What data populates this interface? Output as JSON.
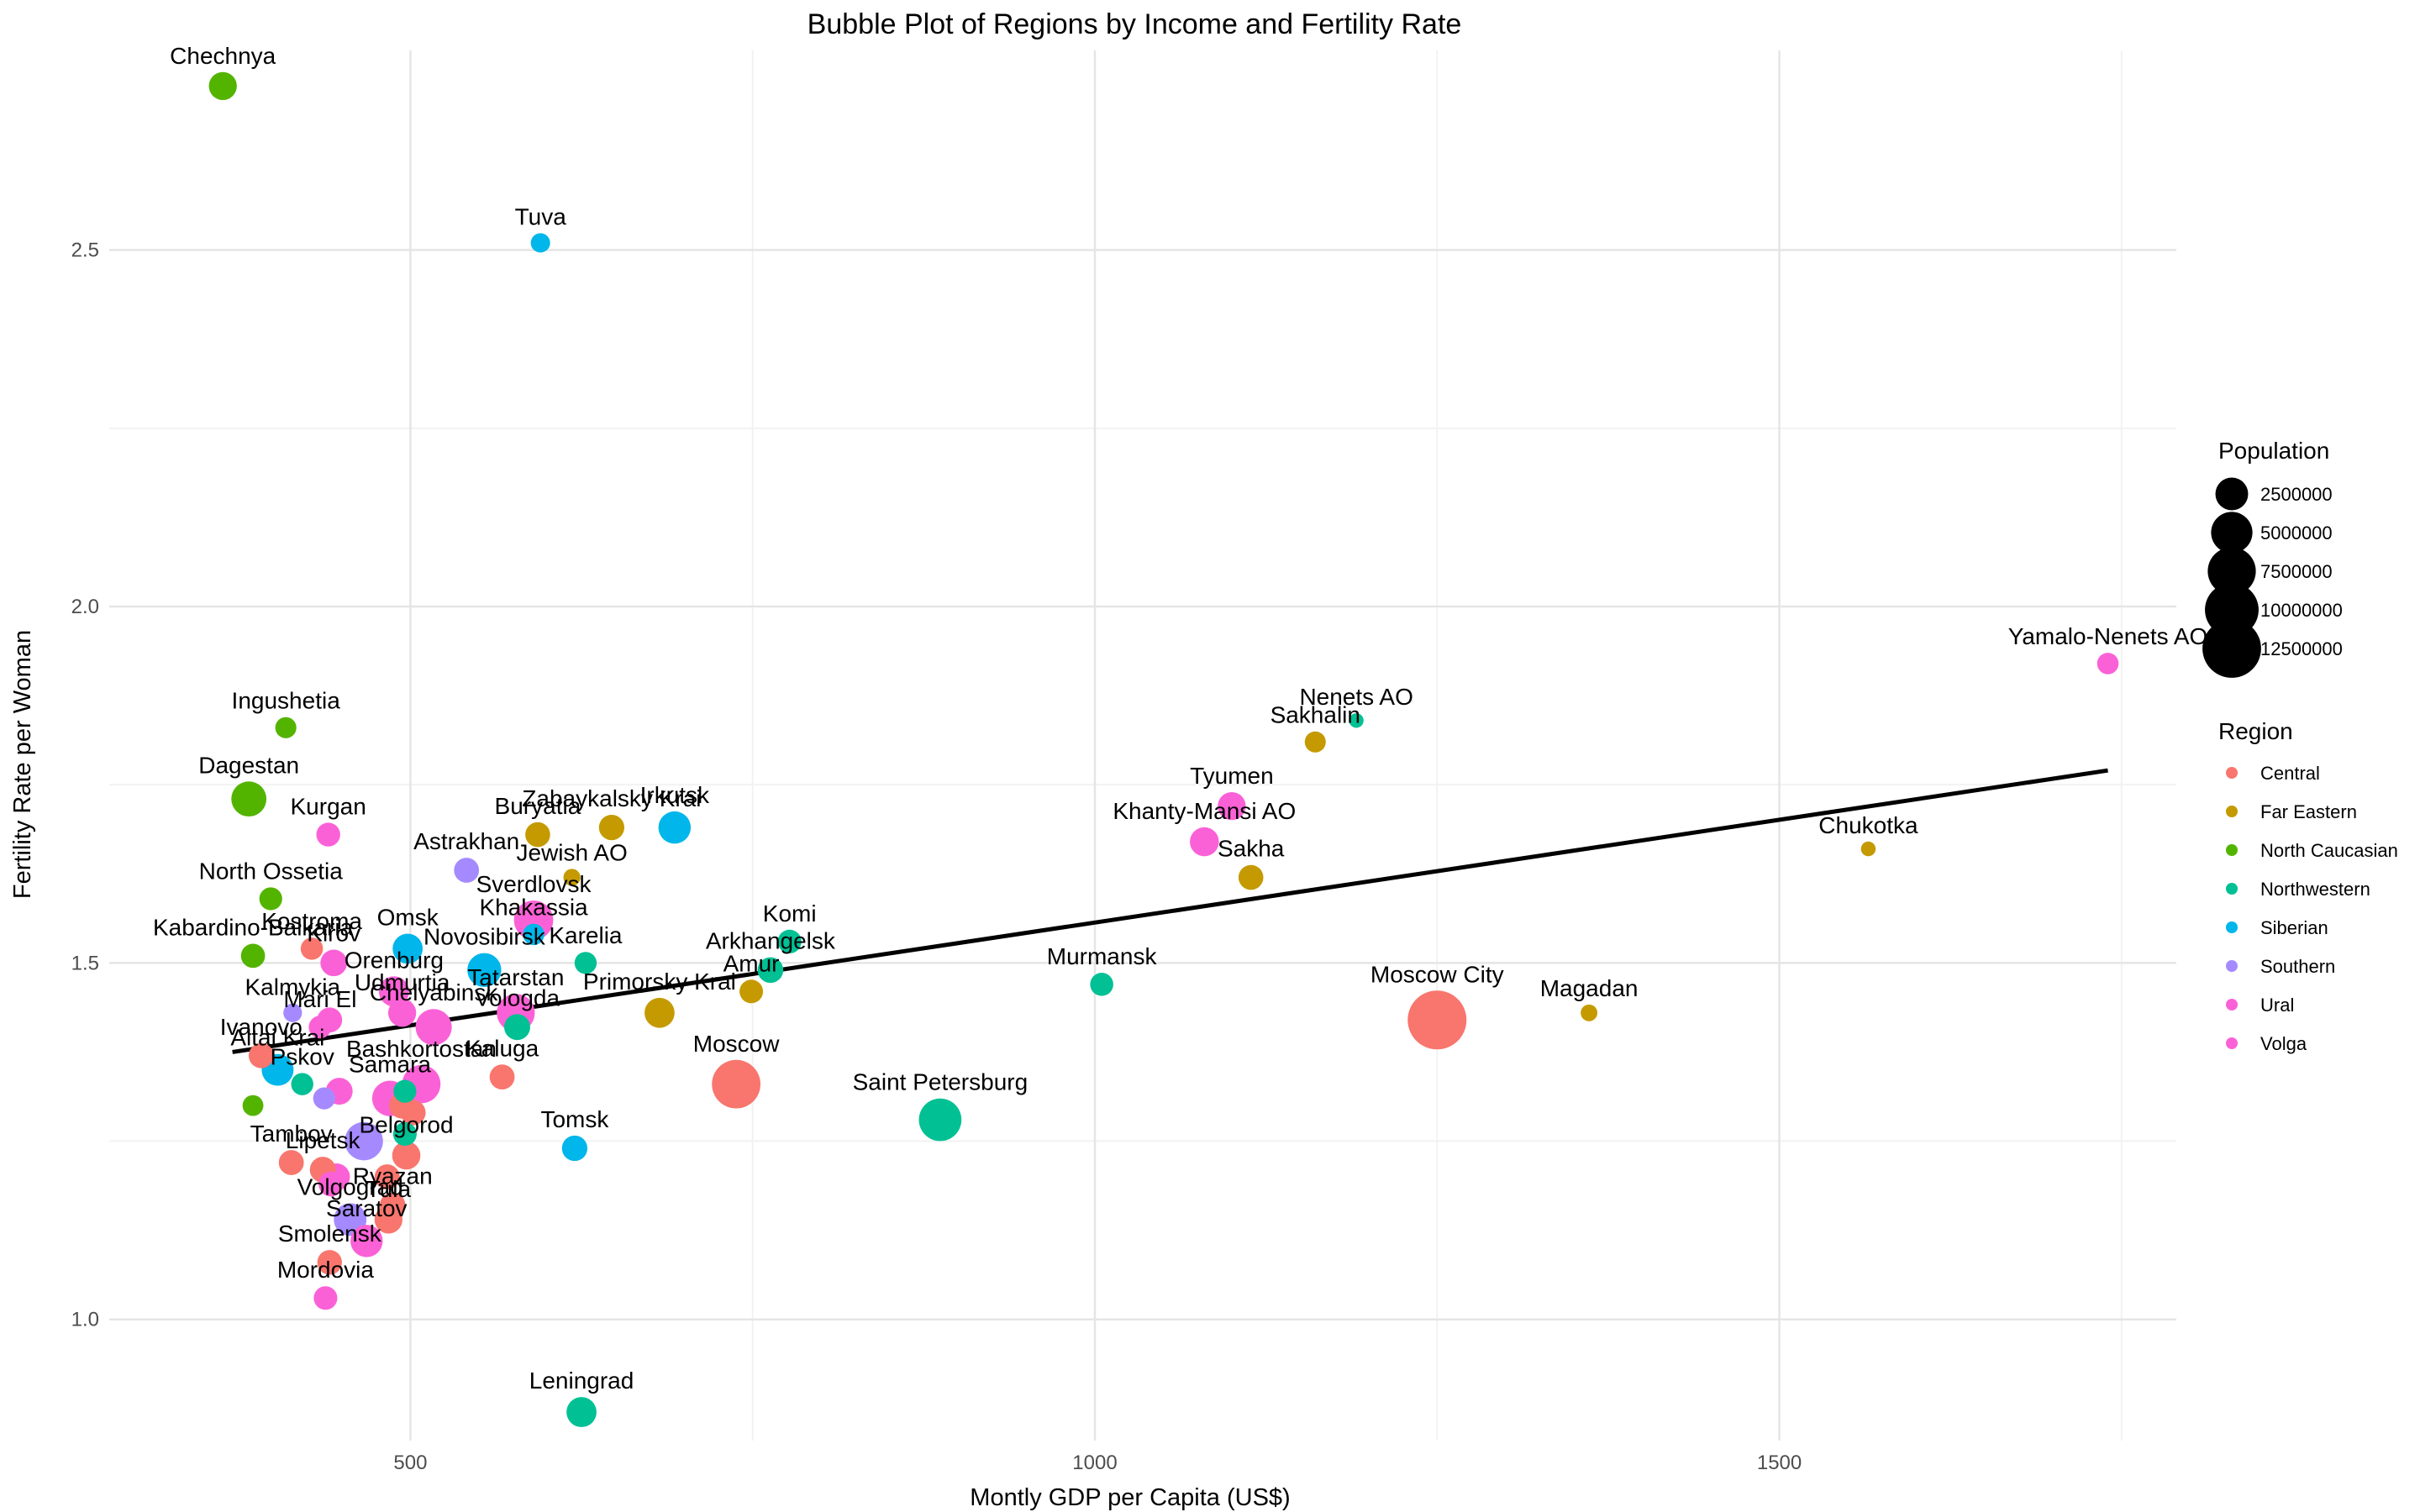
{
  "chart_data": {
    "type": "scatter",
    "title": "Bubble Plot of Regions by Income and Fertility Rate",
    "xlabel": "Montly GDP per Capita (US$)",
    "ylabel": "Fertility Rate per Woman",
    "xlim": [
      280,
      1790
    ],
    "ylim": [
      0.83,
      2.78
    ],
    "x_ticks": [
      500,
      1000,
      1500
    ],
    "y_ticks": [
      1.0,
      1.5,
      2.0,
      2.5
    ],
    "x_minor": [
      750,
      1250,
      1750
    ],
    "y_minor": [
      1.25,
      1.75,
      2.25
    ],
    "grid": true,
    "trend_line": {
      "x": [
        370,
        1740
      ],
      "y": [
        1.375,
        1.77
      ]
    },
    "legend_size": {
      "title": "Population",
      "values": [
        2500000,
        5000000,
        7500000,
        10000000,
        12500000
      ],
      "labels": [
        "2500000",
        "5000000",
        "7500000",
        "10000000",
        "12500000"
      ]
    },
    "legend_color": {
      "title": "Region",
      "regions": [
        "Central",
        "Far Eastern",
        "North Caucasian",
        "Northwestern",
        "Siberian",
        "Southern",
        "Ural",
        "Volga"
      ],
      "colors": [
        "#F8766D",
        "#C49A00",
        "#53B400",
        "#00C094",
        "#00B6EB",
        "#A58AFF",
        "#FB61D7",
        "#FB61D7"
      ]
    },
    "points": [
      {
        "name": "Chechnya",
        "region": "North Caucasian",
        "x": 363,
        "y": 2.73,
        "pop": 1500000,
        "label": true
      },
      {
        "name": "Tuva",
        "region": "Siberian",
        "x": 595,
        "y": 2.51,
        "pop": 330000,
        "label": true
      },
      {
        "name": "Ingushetia",
        "region": "North Caucasian",
        "x": 409,
        "y": 1.83,
        "pop": 500000,
        "label": true
      },
      {
        "name": "Dagestan",
        "region": "North Caucasian",
        "x": 382,
        "y": 1.73,
        "pop": 3100000,
        "label": true
      },
      {
        "name": "Kurgan",
        "region": "Ural",
        "x": 440,
        "y": 1.68,
        "pop": 830000,
        "label": true
      },
      {
        "name": "North Ossetia",
        "region": "North Caucasian",
        "x": 398,
        "y": 1.59,
        "pop": 700000,
        "label": true
      },
      {
        "name": "Kostroma",
        "region": "Central",
        "x": 428,
        "y": 1.52,
        "pop": 630000,
        "label": true
      },
      {
        "name": "Kabardino-Balkaria",
        "region": "North Caucasian",
        "x": 385,
        "y": 1.51,
        "pop": 870000,
        "label": true
      },
      {
        "name": "Kirov",
        "region": "Volga",
        "x": 444,
        "y": 1.5,
        "pop": 1250000,
        "label": true
      },
      {
        "name": "Omsk",
        "region": "Siberian",
        "x": 498,
        "y": 1.52,
        "pop": 1900000,
        "label": true
      },
      {
        "name": "Orenburg",
        "region": "Volga",
        "x": 488,
        "y": 1.46,
        "pop": 1950000,
        "label": true
      },
      {
        "name": "Udmurtia",
        "region": "Volga",
        "x": 494,
        "y": 1.43,
        "pop": 1500000,
        "label": true
      },
      {
        "name": "Kalmykia",
        "region": "Southern",
        "x": 414,
        "y": 1.43,
        "pop": 270000,
        "label": true
      },
      {
        "name": "Mari El",
        "region": "Volga",
        "x": 434,
        "y": 1.41,
        "pop": 680000,
        "label": true
      },
      {
        "name": "Ivanovo",
        "region": "Central",
        "x": 391,
        "y": 1.37,
        "pop": 1000000,
        "label": true
      },
      {
        "name": "Altai Krai",
        "region": "Siberian",
        "x": 403,
        "y": 1.35,
        "pop": 2300000,
        "label": true
      },
      {
        "name": "Pskov",
        "region": "Northwestern",
        "x": 421,
        "y": 1.33,
        "pop": 620000,
        "label": true
      },
      {
        "name": "Chelyabinsk",
        "region": "Ural",
        "x": 517,
        "y": 1.41,
        "pop": 3400000,
        "label": true
      },
      {
        "name": "Bashkortostan",
        "region": "Volga",
        "x": 508,
        "y": 1.33,
        "pop": 4000000,
        "label": true
      },
      {
        "name": "Samara",
        "region": "Volga",
        "x": 485,
        "y": 1.31,
        "pop": 3200000,
        "label": true
      },
      {
        "name": "Tambov",
        "region": "Central",
        "x": 413,
        "y": 1.22,
        "pop": 1000000,
        "label": true
      },
      {
        "name": "Lipetsk",
        "region": "Central",
        "x": 436,
        "y": 1.21,
        "pop": 1140000,
        "label": true
      },
      {
        "name": "Belgorod",
        "region": "Central",
        "x": 497,
        "y": 1.23,
        "pop": 1550000,
        "label": true
      },
      {
        "name": "Volgograd",
        "region": "Southern",
        "x": 456,
        "y": 1.14,
        "pop": 2500000,
        "label": true
      },
      {
        "name": "Ryazan",
        "region": "Central",
        "x": 487,
        "y": 1.16,
        "pop": 1110000,
        "label": true
      },
      {
        "name": "Tula",
        "region": "Central",
        "x": 484,
        "y": 1.14,
        "pop": 1500000,
        "label": true
      },
      {
        "name": "Saratov",
        "region": "Volga",
        "x": 468,
        "y": 1.11,
        "pop": 2400000,
        "label": true
      },
      {
        "name": "Smolensk",
        "region": "Central",
        "x": 441,
        "y": 1.08,
        "pop": 950000,
        "label": true
      },
      {
        "name": "Mordovia",
        "region": "Volga",
        "x": 438,
        "y": 1.03,
        "pop": 800000,
        "label": true
      },
      {
        "name": "Astrakhan",
        "region": "Southern",
        "x": 541,
        "y": 1.63,
        "pop": 1000000,
        "label": true
      },
      {
        "name": "Sverdlovsk",
        "region": "Ural",
        "x": 590,
        "y": 1.56,
        "pop": 4300000,
        "label": true
      },
      {
        "name": "Khakassia",
        "region": "Siberian",
        "x": 590,
        "y": 1.54,
        "pop": 530000,
        "label": true
      },
      {
        "name": "Novosibirsk",
        "region": "Siberian",
        "x": 554,
        "y": 1.49,
        "pop": 2800000,
        "label": true
      },
      {
        "name": "Karelia",
        "region": "Northwestern",
        "x": 628,
        "y": 1.5,
        "pop": 610000,
        "label": true
      },
      {
        "name": "Tatarstan",
        "region": "Volga",
        "x": 577,
        "y": 1.43,
        "pop": 3900000,
        "label": true
      },
      {
        "name": "Vologda",
        "region": "Northwestern",
        "x": 578,
        "y": 1.41,
        "pop": 1150000,
        "label": true
      },
      {
        "name": "Kaluga",
        "region": "Central",
        "x": 567,
        "y": 1.34,
        "pop": 1000000,
        "label": true
      },
      {
        "name": "Buryatia",
        "region": "Far Eastern",
        "x": 593,
        "y": 1.68,
        "pop": 980000,
        "label": true
      },
      {
        "name": "Zabaykalsky Krai",
        "region": "Far Eastern",
        "x": 647,
        "y": 1.69,
        "pop": 1060000,
        "label": true
      },
      {
        "name": "Irkutsk",
        "region": "Siberian",
        "x": 693,
        "y": 1.69,
        "pop": 2400000,
        "label": true
      },
      {
        "name": "Jewish AO",
        "region": "Far Eastern",
        "x": 618,
        "y": 1.62,
        "pop": 160000,
        "label": true
      },
      {
        "name": "Tomsk",
        "region": "Siberian",
        "x": 620,
        "y": 1.24,
        "pop": 1070000,
        "label": true
      },
      {
        "name": "Leningrad",
        "region": "Northwestern",
        "x": 625,
        "y": 0.87,
        "pop": 1900000,
        "label": true
      },
      {
        "name": "Amur",
        "region": "Far Eastern",
        "x": 749,
        "y": 1.46,
        "pop": 790000,
        "label": true
      },
      {
        "name": "Arkhangelsk",
        "region": "Northwestern",
        "x": 763,
        "y": 1.49,
        "pop": 1100000,
        "label": true
      },
      {
        "name": "Komi",
        "region": "Northwestern",
        "x": 777,
        "y": 1.53,
        "pop": 820000,
        "label": true
      },
      {
        "name": "Primorsky Krai",
        "region": "Far Eastern",
        "x": 682,
        "y": 1.43,
        "pop": 1900000,
        "label": true
      },
      {
        "name": "Moscow",
        "region": "Central",
        "x": 738,
        "y": 1.33,
        "pop": 7700000,
        "label": true
      },
      {
        "name": "Saint Petersburg",
        "region": "Northwestern",
        "x": 887,
        "y": 1.28,
        "pop": 5400000,
        "label": true
      },
      {
        "name": "Murmansk",
        "region": "Northwestern",
        "x": 1005,
        "y": 1.47,
        "pop": 740000,
        "label": true
      },
      {
        "name": "Khanty-Mansi AO",
        "region": "Ural",
        "x": 1080,
        "y": 1.67,
        "pop": 1700000,
        "label": true
      },
      {
        "name": "Tyumen",
        "region": "Ural",
        "x": 1100,
        "y": 1.72,
        "pop": 1500000,
        "label": true
      },
      {
        "name": "Sakha",
        "region": "Far Eastern",
        "x": 1114,
        "y": 1.62,
        "pop": 980000,
        "label": true
      },
      {
        "name": "Sakhalin",
        "region": "Far Eastern",
        "x": 1161,
        "y": 1.81,
        "pop": 490000,
        "label": true
      },
      {
        "name": "Nenets AO",
        "region": "Northwestern",
        "x": 1191,
        "y": 1.84,
        "pop": 44000,
        "label": true
      },
      {
        "name": "Moscow City",
        "region": "Central",
        "x": 1250,
        "y": 1.42,
        "pop": 12600000,
        "label": true
      },
      {
        "name": "Magadan",
        "region": "Far Eastern",
        "x": 1361,
        "y": 1.43,
        "pop": 140000,
        "label": true
      },
      {
        "name": "Chukotka",
        "region": "Far Eastern",
        "x": 1565,
        "y": 1.66,
        "pop": 50000,
        "label": true
      },
      {
        "name": "Yamalo-Nenets AO",
        "region": "Ural",
        "x": 1740,
        "y": 1.92,
        "pop": 540000,
        "label": true
      },
      {
        "name": "",
        "region": "Central",
        "x": 494,
        "y": 1.3,
        "pop": 1200000,
        "label": false
      },
      {
        "name": "",
        "region": "Central",
        "x": 483,
        "y": 1.2,
        "pop": 1000000,
        "label": false
      },
      {
        "name": "",
        "region": "Central",
        "x": 502,
        "y": 1.29,
        "pop": 1000000,
        "label": false
      },
      {
        "name": "",
        "region": "Northwestern",
        "x": 496,
        "y": 1.26,
        "pop": 800000,
        "label": false
      },
      {
        "name": "",
        "region": "Northwestern",
        "x": 496,
        "y": 1.32,
        "pop": 700000,
        "label": false
      },
      {
        "name": "",
        "region": "Volga",
        "x": 448,
        "y": 1.32,
        "pop": 1300000,
        "label": false
      },
      {
        "name": "",
        "region": "Volga",
        "x": 442,
        "y": 1.19,
        "pop": 1000000,
        "label": false
      },
      {
        "name": "",
        "region": "Volga",
        "x": 446,
        "y": 1.2,
        "pop": 1300000,
        "label": false
      },
      {
        "name": "",
        "region": "Southern",
        "x": 466,
        "y": 1.25,
        "pop": 4000000,
        "label": false
      },
      {
        "name": "",
        "region": "Southern",
        "x": 437,
        "y": 1.31,
        "pop": 600000,
        "label": false
      },
      {
        "name": "",
        "region": "Volga",
        "x": 441,
        "y": 1.42,
        "pop": 1000000,
        "label": false
      },
      {
        "name": "",
        "region": "North Caucasian",
        "x": 385,
        "y": 1.3,
        "pop": 470000,
        "label": false
      }
    ]
  }
}
